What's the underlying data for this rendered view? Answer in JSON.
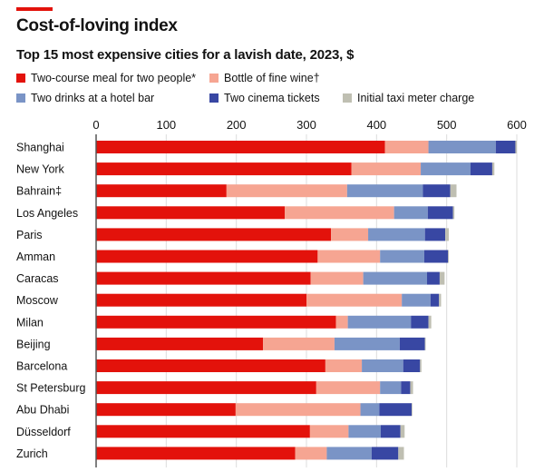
{
  "header": {
    "title": "Cost-of-loving index",
    "subtitle": "Top 15 most expensive cities for a lavish date, 2023, $"
  },
  "colors": {
    "accent": "#e3120b",
    "gridline": "#dcdcdc",
    "axis": "#555555"
  },
  "chart_data": {
    "type": "bar",
    "orientation": "horizontal",
    "stacked": true,
    "title": "Cost-of-loving index",
    "subtitle": "Top 15 most expensive cities for a lavish date, 2023, $",
    "xlabel": "",
    "ylabel": "",
    "xlim": [
      0,
      600
    ],
    "xticks": [
      0,
      100,
      200,
      300,
      400,
      500,
      600
    ],
    "xtick_position": "top",
    "grid": true,
    "legend_position": "top",
    "categories": [
      "Shanghai",
      "New York",
      "Bahrain‡",
      "Los Angeles",
      "Paris",
      "Amman",
      "Caracas",
      "Moscow",
      "Milan",
      "Beijing",
      "Barcelona",
      "St Petersburg",
      "Abu Dhabi",
      "Düsseldorf",
      "Zurich"
    ],
    "series": [
      {
        "name": "Two-course meal for two people*",
        "color": "#e3120b",
        "values": [
          412,
          364,
          186,
          269,
          335,
          316,
          306,
          300,
          342,
          238,
          327,
          314,
          199,
          305,
          284
        ]
      },
      {
        "name": "Bottle of fine wine†",
        "color": "#f6a592",
        "values": [
          62,
          99,
          172,
          156,
          53,
          89,
          75,
          136,
          17,
          102,
          52,
          91,
          178,
          55,
          45
        ]
      },
      {
        "name": "Two drinks at a hotel bar",
        "color": "#7a94c6",
        "values": [
          96,
          71,
          108,
          48,
          81,
          63,
          91,
          41,
          90,
          93,
          59,
          30,
          27,
          46,
          64
        ]
      },
      {
        "name": "Two cinema tickets",
        "color": "#3847a3",
        "values": [
          28,
          31,
          39,
          36,
          29,
          34,
          18,
          12,
          25,
          36,
          24,
          13,
          46,
          28,
          38
        ]
      },
      {
        "name": "Initial taxi meter charge",
        "color": "#bfbfb2",
        "values": [
          2,
          3,
          9,
          2,
          5,
          1,
          7,
          3,
          4,
          1,
          2,
          4,
          1,
          6,
          8
        ]
      }
    ]
  }
}
